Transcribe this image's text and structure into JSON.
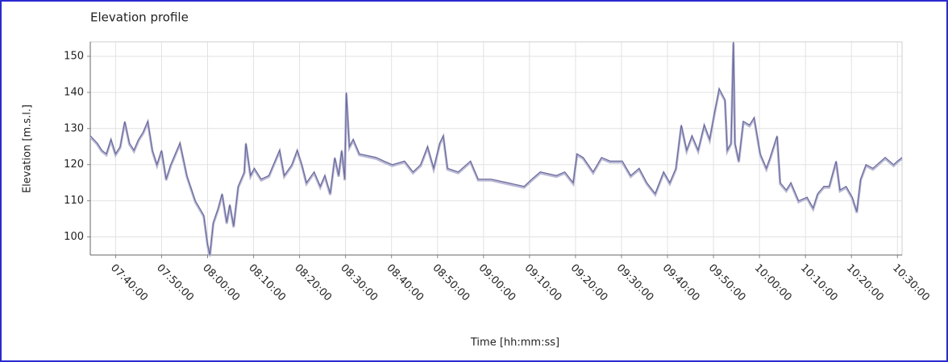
{
  "chart_data": {
    "type": "line",
    "title": "Elevation profile",
    "x_label": "Time  [hh:mm:ss]",
    "y_label": "Elevation [m.s.l.]",
    "xlim": [
      "07:34:30",
      "10:31:00"
    ],
    "xticks": [
      "07:40:00",
      "07:50:00",
      "08:00:00",
      "08:10:00",
      "08:20:00",
      "08:30:00",
      "08:40:00",
      "08:50:00",
      "09:00:00",
      "09:10:00",
      "09:20:00",
      "09:30:00",
      "09:40:00",
      "09:50:00",
      "10:00:00",
      "10:10:00",
      "10:20:00",
      "10:30:00"
    ],
    "ylim": [
      95,
      154
    ],
    "yticks": [
      100,
      110,
      120,
      130,
      140,
      150
    ],
    "grid": true,
    "x": [
      "07:34:30",
      "07:36:00",
      "07:37:00",
      "07:38:00",
      "07:39:00",
      "07:40:00",
      "07:41:00",
      "07:42:00",
      "07:43:00",
      "07:44:00",
      "07:45:00",
      "07:46:00",
      "07:47:00",
      "07:48:00",
      "07:49:00",
      "07:50:00",
      "07:51:00",
      "07:52:00",
      "07:53:00",
      "07:54:00",
      "07:55:30",
      "07:57:20",
      "07:59:10",
      "08:00:00",
      "08:00:30",
      "08:01:15",
      "08:02:20",
      "08:03:10",
      "08:04:10",
      "08:04:50",
      "08:05:40",
      "08:06:40",
      "08:08:00",
      "08:08:20",
      "08:09:20",
      "08:10:10",
      "08:11:40",
      "08:13:20",
      "08:15:40",
      "08:16:40",
      "08:18:20",
      "08:19:30",
      "08:20:30",
      "08:21:30",
      "08:23:10",
      "08:24:30",
      "08:25:30",
      "08:26:40",
      "08:27:40",
      "08:28:30",
      "08:29:10",
      "08:29:50",
      "08:30:10",
      "08:30:50",
      "08:31:40",
      "08:33:00",
      "08:36:40",
      "08:38:20",
      "08:40:10",
      "08:42:50",
      "08:44:40",
      "08:46:20",
      "08:47:50",
      "08:49:10",
      "08:50:30",
      "08:51:15",
      "08:52:10",
      "08:54:30",
      "08:57:10",
      "08:58:50",
      "09:01:40",
      "09:08:50",
      "09:10:30",
      "09:12:20",
      "09:15:50",
      "09:17:40",
      "09:19:30",
      "09:20:20",
      "09:21:40",
      "09:23:50",
      "09:25:40",
      "09:27:30",
      "09:30:10",
      "09:32:00",
      "09:33:50",
      "09:35:30",
      "09:37:20",
      "09:39:10",
      "09:40:30",
      "09:41:50",
      "09:43:00",
      "09:44:10",
      "09:45:20",
      "09:46:40",
      "09:48:00",
      "09:49:10",
      "09:50:10",
      "09:51:15",
      "09:52:30",
      "09:53:00",
      "09:53:50",
      "09:54:20",
      "09:54:40",
      "09:55:30",
      "09:56:30",
      "09:57:50",
      "09:58:50",
      "10:00:10",
      "10:01:30",
      "10:02:20",
      "10:03:50",
      "10:04:30",
      "10:05:50",
      "10:06:50",
      "10:08:30",
      "10:10:20",
      "10:11:40",
      "10:12:40",
      "10:14:00",
      "10:15:10",
      "10:16:40",
      "10:17:30",
      "10:18:50",
      "10:20:10",
      "10:21:10",
      "10:22:00",
      "10:23:10",
      "10:24:40",
      "10:27:20",
      "10:29:10",
      "10:30:00",
      "10:31:00"
    ],
    "series": [
      {
        "color": "#6a6a9c",
        "values": [
          128,
          126,
          124,
          123,
          127,
          123,
          125,
          132,
          126,
          124,
          127,
          129,
          132,
          124,
          120,
          124,
          116,
          120,
          123,
          126,
          117,
          110,
          106,
          98,
          95,
          104,
          108,
          112,
          104,
          109,
          103,
          114,
          118,
          126,
          117,
          119,
          116,
          117,
          124,
          117,
          120,
          124,
          120,
          115,
          118,
          114,
          117,
          112,
          122,
          117,
          124,
          116,
          140,
          125,
          127,
          123,
          122,
          121,
          120,
          121,
          118,
          120,
          125,
          119,
          126,
          128,
          119,
          118,
          121,
          116,
          116,
          114,
          116,
          118,
          117,
          118,
          115,
          123,
          122,
          118,
          122,
          121,
          121,
          117,
          119,
          115,
          112,
          118,
          115,
          119,
          131,
          124,
          128,
          124,
          131,
          127,
          134,
          141,
          138,
          124,
          126,
          154,
          126,
          121,
          132,
          131,
          133,
          123,
          119,
          122,
          128,
          115,
          113,
          115,
          110,
          111,
          108,
          112,
          114,
          114,
          121,
          113,
          114,
          111,
          107,
          116,
          120,
          119,
          122,
          120,
          121,
          122
        ]
      }
    ]
  }
}
